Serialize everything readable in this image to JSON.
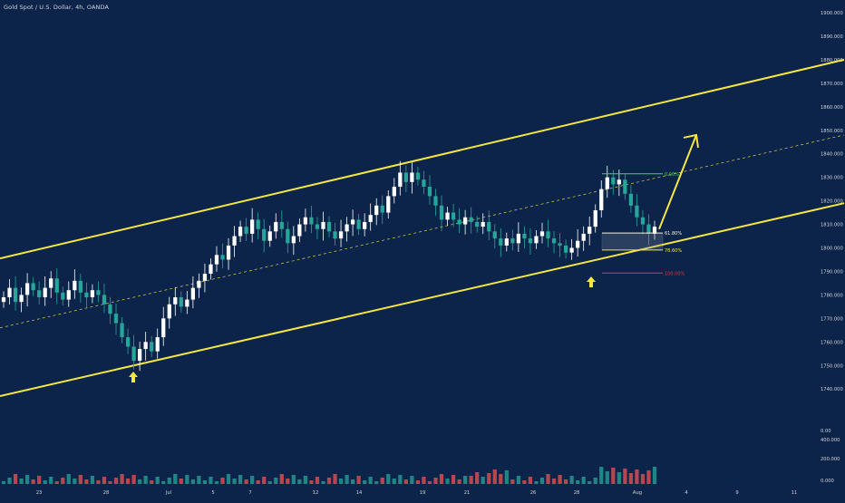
{
  "header": {
    "title": "Gold Spot / U.S. Dollar, 4h, OANDA"
  },
  "colors": {
    "background": "#0c2449",
    "up_candle": "#ffffff",
    "down_candle": "#26a69a",
    "channel": "#f5e642",
    "fib_0": "#2fe53b",
    "fib_618": "#f5f5dc",
    "fib_786": "#f5e642",
    "fib_100": "#e03a3a",
    "arrow": "#f5e642",
    "vol_up": "#26a69a",
    "vol_down": "#ef5350",
    "axis_text": "#d1d4dc"
  },
  "chart_data": {
    "type": "candlestick",
    "symbol": "Gold Spot / U.S. Dollar",
    "timeframe": "4h",
    "source": "OANDA",
    "ylim": [
      1730,
      1900
    ],
    "y_ticks": [
      1900,
      1890,
      1880,
      1870,
      1860,
      1850,
      1840,
      1830,
      1820,
      1810,
      1800,
      1790,
      1780,
      1770,
      1760,
      1750,
      1740
    ],
    "y_tick_labels": [
      "1900.000",
      "1890.000",
      "1880.000",
      "1870.000",
      "1860.000",
      "1850.000",
      "1840.000",
      "1830.000",
      "1820.000",
      "1810.000",
      "1800.000",
      "1790.000",
      "1780.000",
      "1770.000",
      "1760.000",
      "1750.000",
      "1740.000"
    ],
    "x_tick_labels": [
      "23",
      "28",
      "Jul",
      "5",
      "7",
      "12",
      "14",
      "19",
      "21",
      "26",
      "28",
      "Aug",
      "4",
      "9",
      "11"
    ],
    "volume_axis_labels": [
      "0.00",
      "400.000",
      "200.000",
      "0.000"
    ],
    "closes": [
      1779,
      1783,
      1777,
      1780,
      1785,
      1782,
      1779,
      1783,
      1787,
      1781,
      1778,
      1782,
      1786,
      1781,
      1779,
      1782,
      1780,
      1776,
      1772,
      1768,
      1762,
      1758,
      1752,
      1757,
      1760,
      1756,
      1762,
      1770,
      1776,
      1779,
      1775,
      1778,
      1783,
      1786,
      1789,
      1793,
      1797,
      1795,
      1801,
      1805,
      1809,
      1806,
      1812,
      1808,
      1803,
      1807,
      1811,
      1808,
      1802,
      1805,
      1810,
      1813,
      1810,
      1808,
      1811,
      1807,
      1804,
      1807,
      1810,
      1812,
      1808,
      1811,
      1814,
      1818,
      1815,
      1822,
      1826,
      1832,
      1828,
      1832,
      1829,
      1826,
      1822,
      1818,
      1812,
      1815,
      1812,
      1810,
      1813,
      1811,
      1809,
      1811,
      1807,
      1804,
      1801,
      1804,
      1802,
      1806,
      1804,
      1802,
      1805,
      1807,
      1804,
      1802,
      1801,
      1798,
      1800,
      1803,
      1806,
      1809,
      1816,
      1825,
      1830,
      1827,
      1829,
      1823,
      1818,
      1813,
      1810,
      1806,
      1809
    ],
    "channel": {
      "upper_line": [
        [
          0,
          1795.5
        ],
        [
          931,
          1880
        ]
      ],
      "lower_line": [
        [
          0,
          1737
        ],
        [
          931,
          1819
        ]
      ],
      "mid_line_dashed": [
        [
          0,
          1766
        ],
        [
          931,
          1848
        ]
      ]
    },
    "fib_levels": [
      {
        "ratio": 0,
        "label": "0.00%"
      },
      {
        "ratio": 0.618,
        "label": "61.80%"
      },
      {
        "ratio": 0.786,
        "label": "78.60%"
      },
      {
        "ratio": 1,
        "label": "100.00%"
      }
    ],
    "fib_prices": [
      1831.5,
      1806.3,
      1799.1,
      1789.3
    ],
    "bounce_arrows": [
      {
        "price": 1745
      },
      {
        "price": 1785
      }
    ],
    "projection_arrow": {
      "from": 1808,
      "to": 1848
    }
  }
}
